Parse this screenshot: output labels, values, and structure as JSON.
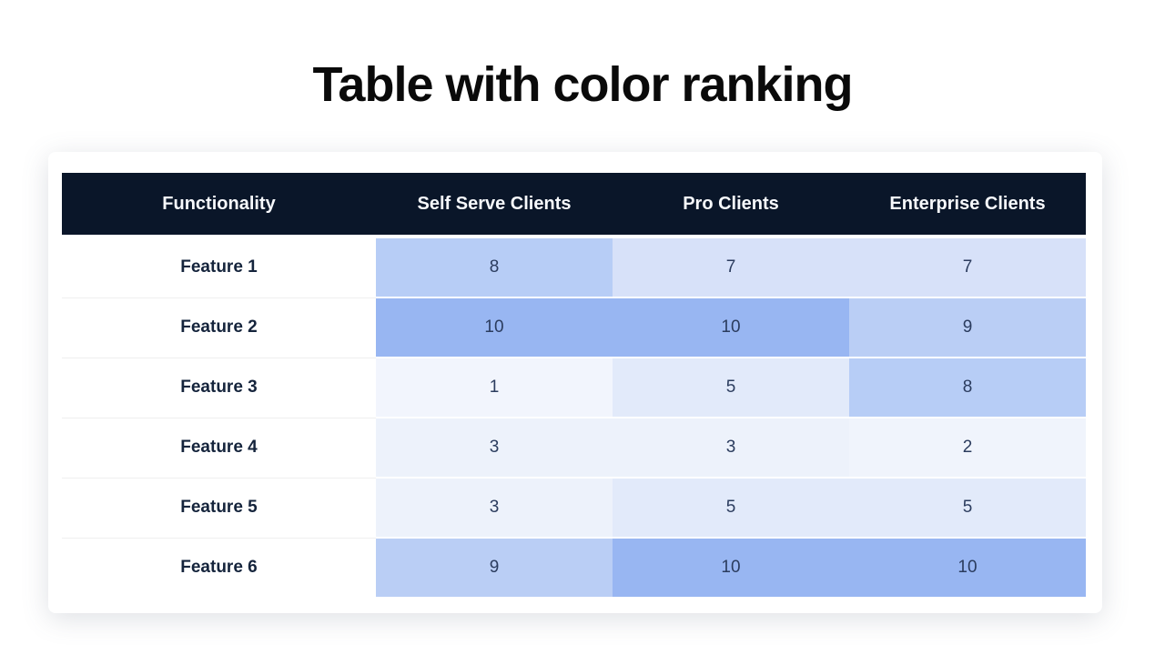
{
  "page": {
    "title": "Table with color ranking"
  },
  "chart_data": {
    "type": "heatmap",
    "title": "Table with color ranking",
    "columns": [
      "Functionality",
      "Self Serve Clients",
      "Pro Clients",
      "Enterprise Clients"
    ],
    "rows": [
      {
        "label": "Feature 1",
        "values": [
          8,
          7,
          7
        ]
      },
      {
        "label": "Feature 2",
        "values": [
          10,
          10,
          9
        ]
      },
      {
        "label": "Feature 3",
        "values": [
          1,
          5,
          8
        ]
      },
      {
        "label": "Feature 4",
        "values": [
          3,
          3,
          2
        ]
      },
      {
        "label": "Feature 5",
        "values": [
          3,
          5,
          5
        ]
      },
      {
        "label": "Feature 6",
        "values": [
          9,
          10,
          10
        ]
      }
    ],
    "value_range": [
      1,
      10
    ],
    "legend": "none",
    "color_encoding": "higher value = darker blue"
  },
  "colors": {
    "header_bg": "#0a1629",
    "header_text": "#f7f9fc",
    "row_label_text": "#15243c",
    "cell_value_text": "#2b3c5e",
    "divider": "#efefef",
    "value_scale": {
      "1": "#f2f5fd",
      "2": "#f0f4fc",
      "3": "#edf2fb",
      "5": "#e2eafa",
      "7": "#d7e1f9",
      "8": "#b7cdf6",
      "9": "#bacef5",
      "10": "#98b6f2"
    }
  }
}
